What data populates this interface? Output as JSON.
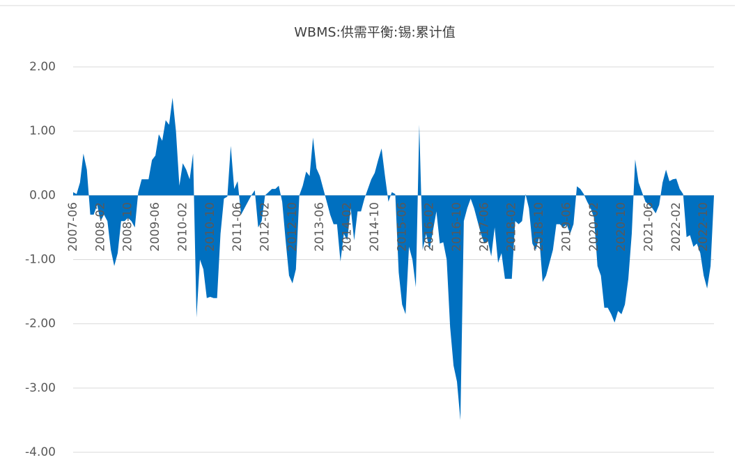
{
  "chart_data": {
    "type": "area",
    "title": "WBMS:供需平衡:锡:累计值",
    "color": "#0070c0",
    "grid": true,
    "ylim": [
      -4,
      2
    ],
    "yticks": [
      {
        "value": -4,
        "label": "-4.00"
      },
      {
        "value": -3,
        "label": "-3.00"
      },
      {
        "value": -2,
        "label": "-2.00"
      },
      {
        "value": -1,
        "label": "-1.00"
      },
      {
        "value": 0,
        "label": "0.00"
      },
      {
        "value": 1,
        "label": "1.00"
      },
      {
        "value": 2,
        "label": "2.00"
      }
    ],
    "categories": [
      "2007-06",
      null,
      null,
      null,
      null,
      null,
      null,
      null,
      "2008-02",
      null,
      null,
      null,
      null,
      null,
      null,
      null,
      "2008-10",
      null,
      null,
      null,
      null,
      null,
      null,
      null,
      "2009-06",
      null,
      null,
      null,
      null,
      null,
      null,
      null,
      "2010-02",
      null,
      null,
      null,
      null,
      null,
      null,
      null,
      "2010-10",
      null,
      null,
      null,
      null,
      null,
      null,
      null,
      "2011-06",
      null,
      null,
      null,
      null,
      null,
      null,
      null,
      "2012-02",
      null,
      null,
      null,
      null,
      null,
      null,
      null,
      "2012-10",
      null,
      null,
      null,
      null,
      null,
      null,
      null,
      "2013-06",
      null,
      null,
      null,
      null,
      null,
      null,
      null,
      "2014-02",
      null,
      null,
      null,
      null,
      null,
      null,
      null,
      "2014-10",
      null,
      null,
      null,
      null,
      null,
      null,
      null,
      "2015-06",
      null,
      null,
      null,
      null,
      null,
      null,
      null,
      "2016-02",
      null,
      null,
      null,
      null,
      null,
      null,
      null,
      "2016-10",
      null,
      null,
      null,
      null,
      null,
      null,
      null,
      "2017-06",
      null,
      null,
      null,
      null,
      null,
      null,
      null,
      "2018-02",
      null,
      null,
      null,
      null,
      null,
      null,
      null,
      "2018-10",
      null,
      null,
      null,
      null,
      null,
      null,
      null,
      "2019-06",
      null,
      null,
      null,
      null,
      null,
      null,
      null,
      "2020-02",
      null,
      null,
      null,
      null,
      null,
      null,
      null,
      "2020-10",
      null,
      null,
      null,
      null,
      null,
      null,
      null,
      "2021-06",
      null,
      null,
      null,
      null,
      null,
      null,
      null,
      "2022-02",
      null,
      null,
      null,
      null,
      null,
      null,
      null,
      "2022-10",
      null,
      null,
      null
    ],
    "values": [
      0.05,
      0.02,
      0.2,
      0.65,
      0.4,
      -0.3,
      -0.3,
      -0.15,
      -0.4,
      -0.3,
      -0.4,
      -0.85,
      -1.1,
      -0.9,
      -0.4,
      -0.4,
      -0.35,
      -0.4,
      -0.5,
      0.05,
      0.25,
      0.25,
      0.25,
      0.55,
      0.62,
      0.95,
      0.85,
      1.17,
      1.1,
      1.52,
      1.0,
      0.15,
      0.5,
      0.4,
      0.25,
      0.65,
      -1.9,
      -1.0,
      -1.15,
      -1.6,
      -1.58,
      -1.6,
      -1.6,
      -0.6,
      -0.05,
      -0.02,
      0.77,
      0.1,
      0.22,
      -0.3,
      -0.2,
      -0.1,
      0.0,
      0.08,
      -0.5,
      -0.4,
      0.0,
      0.05,
      0.1,
      0.1,
      0.15,
      -0.1,
      -0.7,
      -1.25,
      -1.37,
      -1.15,
      0.0,
      0.15,
      0.37,
      0.3,
      0.9,
      0.42,
      0.3,
      0.1,
      -0.1,
      -0.3,
      -0.45,
      -0.45,
      -1.03,
      -0.6,
      -0.7,
      -0.2,
      -0.7,
      -0.25,
      -0.25,
      -0.05,
      0.1,
      0.25,
      0.35,
      0.55,
      0.73,
      0.3,
      -0.1,
      0.05,
      0.02,
      -1.2,
      -1.7,
      -1.85,
      -0.8,
      -1.0,
      -1.43,
      1.1,
      -0.85,
      -0.6,
      -0.85,
      -0.55,
      -0.25,
      -0.75,
      -0.73,
      -1.0,
      -2.05,
      -2.65,
      -2.9,
      -3.5,
      -0.4,
      -0.2,
      -0.05,
      -0.2,
      -0.4,
      -0.6,
      -0.75,
      -0.7,
      -0.95,
      -0.5,
      -1.05,
      -0.9,
      -1.3,
      -1.3,
      -1.3,
      -0.4,
      -0.45,
      -0.4,
      0.02,
      -0.2,
      -0.75,
      -0.85,
      -0.65,
      -1.35,
      -1.25,
      -1.05,
      -0.85,
      -0.45,
      -0.45,
      -0.5,
      -0.45,
      -0.6,
      -0.45,
      0.14,
      0.1,
      0.02,
      -0.1,
      -0.2,
      -0.35,
      -1.1,
      -1.25,
      -1.75,
      -1.75,
      -1.85,
      -1.98,
      -1.8,
      -1.85,
      -1.7,
      -1.3,
      -0.6,
      0.56,
      0.2,
      0.05,
      -0.1,
      -0.15,
      -0.2,
      -0.28,
      -0.15,
      0.2,
      0.4,
      0.22,
      0.25,
      0.26,
      0.1,
      0.02,
      -0.65,
      -0.62,
      -0.8,
      -0.75,
      -0.9,
      -1.25,
      -1.45,
      -1.1,
      0.0
    ]
  }
}
